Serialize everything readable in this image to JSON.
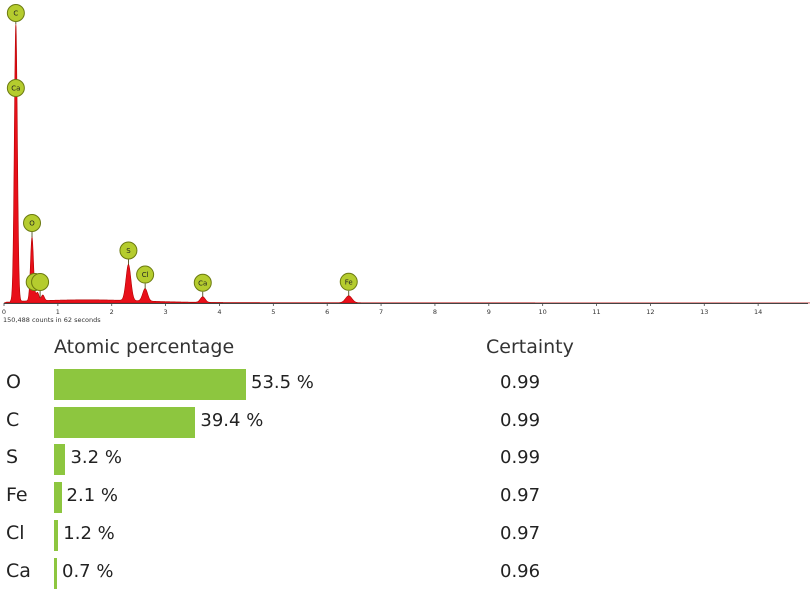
{
  "chart_data": [
    {
      "type": "area",
      "xlim": [
        0,
        15
      ],
      "x_ticks": [
        "0",
        "1",
        "2",
        "3",
        "4",
        "5",
        "6",
        "7",
        "8",
        "9",
        "10",
        "11",
        "12",
        "13",
        "14"
      ],
      "counts_caption": "150,488 counts in 62 seconds",
      "series_color": "#e8101a",
      "marker_color": "#b5cc2e",
      "peaks": [
        {
          "x": 0.22,
          "y": 100
        },
        {
          "x": 0.52,
          "y": 23
        },
        {
          "x": 0.62,
          "y": 3
        },
        {
          "x": 0.72,
          "y": 2
        },
        {
          "x": 2.31,
          "y": 13
        },
        {
          "x": 2.62,
          "y": 4.5
        },
        {
          "x": 3.69,
          "y": 2
        },
        {
          "x": 6.4,
          "y": 2.5
        }
      ],
      "markers": [
        {
          "label": "C",
          "x": 0.22
        },
        {
          "label": "Ca",
          "x": 0.22
        },
        {
          "label": "O",
          "x": 0.52
        },
        {
          "label": "Fe",
          "x": 0.57
        },
        {
          "label": "",
          "x": 0.67
        },
        {
          "label": "S",
          "x": 2.31
        },
        {
          "label": "Cl",
          "x": 2.62
        },
        {
          "label": "Ca",
          "x": 3.69
        },
        {
          "label": "Fe",
          "x": 6.4
        }
      ]
    },
    {
      "type": "bar",
      "orientation": "horizontal",
      "bar_color": "#8dc63f",
      "headers": {
        "atomic": "Atomic percentage",
        "certainty": "Certainty"
      },
      "categories": [
        "O",
        "C",
        "S",
        "Fe",
        "Cl",
        "Ca"
      ],
      "values": [
        53.5,
        39.4,
        3.2,
        2.1,
        1.2,
        0.7
      ],
      "value_labels": [
        "53.5 %",
        "39.4 %",
        "3.2 %",
        "2.1 %",
        "1.2 %",
        "0.7 %"
      ],
      "certainty": [
        "0.99",
        "0.99",
        "0.99",
        "0.97",
        "0.97",
        "0.96"
      ]
    }
  ]
}
